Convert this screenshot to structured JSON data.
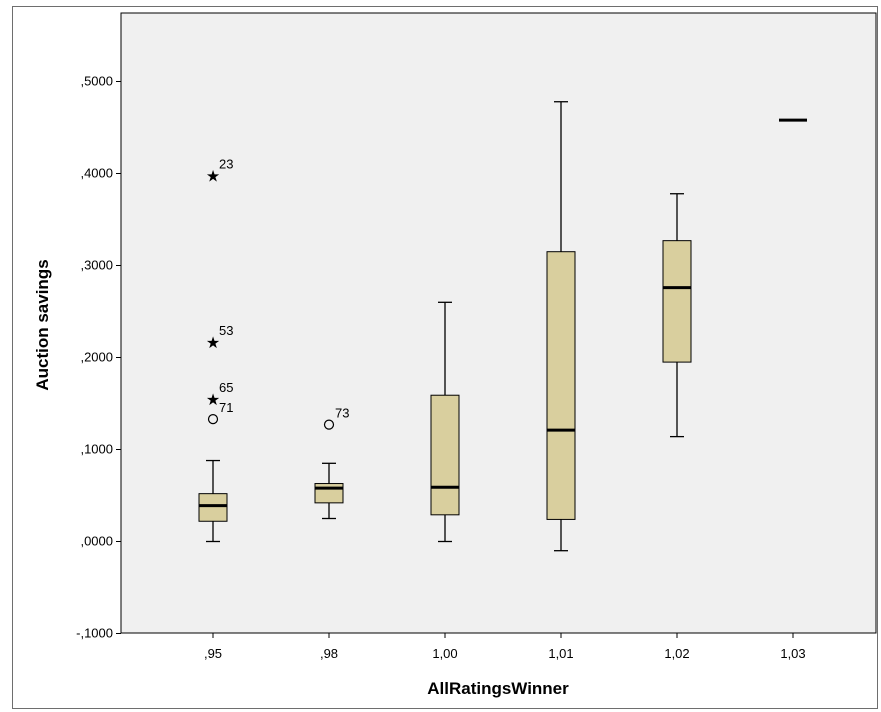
{
  "chart_data": {
    "type": "boxplot",
    "xlabel": "AllRatingsWinner",
    "ylabel": "Auction savings",
    "ylim": [
      -0.1,
      0.56
    ],
    "yticks": [
      -0.1,
      0.0,
      0.1,
      0.2,
      0.3,
      0.4,
      0.5
    ],
    "ytick_labels": [
      "-,1000",
      ",0000",
      ",1000",
      ",2000",
      ",3000",
      ",4000",
      ",5000"
    ],
    "categories": [
      ",95",
      ",98",
      "1,00",
      "1,01",
      "1,02",
      "1,03"
    ],
    "boxes": [
      {
        "category": ",95",
        "whisker_low": 0.0,
        "q1": 0.022,
        "median": 0.039,
        "q3": 0.052,
        "whisker_high": 0.088
      },
      {
        "category": ",98",
        "whisker_low": 0.025,
        "q1": 0.042,
        "median": 0.058,
        "q3": 0.063,
        "whisker_high": 0.085
      },
      {
        "category": "1,00",
        "whisker_low": 0.0,
        "q1": 0.029,
        "median": 0.059,
        "q3": 0.159,
        "whisker_high": 0.26
      },
      {
        "category": "1,01",
        "whisker_low": -0.01,
        "q1": 0.024,
        "median": 0.121,
        "q3": 0.315,
        "whisker_high": 0.478
      },
      {
        "category": "1,02",
        "whisker_low": 0.114,
        "q1": 0.195,
        "median": 0.276,
        "q3": 0.327,
        "whisker_high": 0.378
      },
      {
        "category": "1,03",
        "median": 0.458,
        "single_value": true
      }
    ],
    "outliers": [
      {
        "category": ",95",
        "value": 0.398,
        "label": "23",
        "kind": "extreme"
      },
      {
        "category": ",95",
        "value": 0.217,
        "label": "53",
        "kind": "extreme"
      },
      {
        "category": ",95",
        "value": 0.155,
        "label": "65",
        "kind": "extreme"
      },
      {
        "category": ",95",
        "value": 0.133,
        "label": "71",
        "kind": "outlier"
      },
      {
        "category": ",98",
        "value": 0.127,
        "label": "73",
        "kind": "outlier"
      }
    ],
    "colors": {
      "box_fill": "#d9cf9e",
      "plot_bg": "#f0f0f0",
      "stroke": "#000000"
    },
    "grid": false
  }
}
